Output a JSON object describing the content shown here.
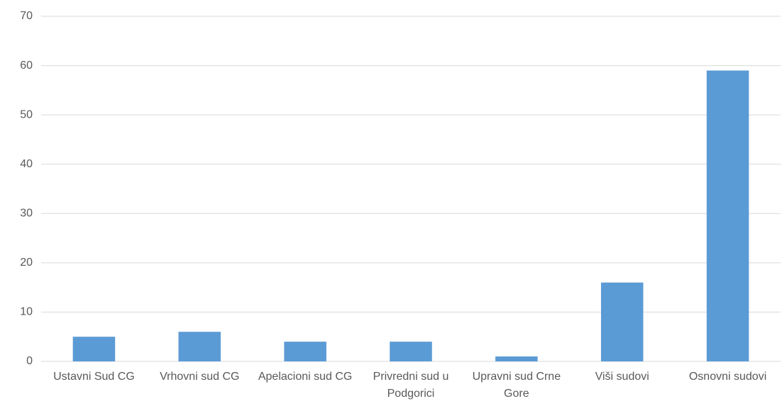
{
  "chart_data": {
    "type": "bar",
    "categories": [
      "Ustavni Sud CG",
      "Vrhovni sud CG",
      "Apelacioni sud CG",
      "Privredni sud u Podgorici",
      "Upravni sud Crne Gore",
      "Viši sudovi",
      "Osnovni sudovi"
    ],
    "values": [
      5,
      6,
      4,
      4,
      1,
      16,
      59
    ],
    "color": "#5b9bd5",
    "ylim": [
      0,
      70
    ],
    "yticks": [
      0,
      10,
      20,
      30,
      40,
      50,
      60,
      70
    ],
    "grid": true
  }
}
